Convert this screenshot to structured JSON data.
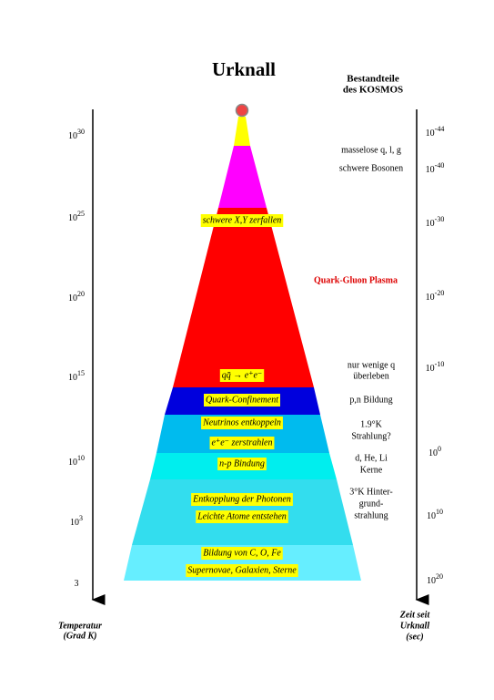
{
  "title": "Urknall",
  "components_heading": [
    "Bestandteile",
    "des KOSMOS"
  ],
  "temperature_axis": {
    "label": [
      "Temperatur",
      "(Grad K)"
    ],
    "ticks": [
      {
        "base": "10",
        "exp": "30"
      },
      {
        "base": "10",
        "exp": "25"
      },
      {
        "base": "10",
        "exp": "20"
      },
      {
        "base": "10",
        "exp": "15"
      },
      {
        "base": "10",
        "exp": "10"
      },
      {
        "base": "10",
        "exp": "3"
      },
      {
        "base": "3"
      }
    ]
  },
  "time_axis": {
    "label": [
      "Zeit seit",
      "Urknall",
      "(sec)"
    ],
    "ticks": [
      {
        "base": "10",
        "exp": "-44"
      },
      {
        "base": "10",
        "exp": "-40"
      },
      {
        "base": "10",
        "exp": "-30"
      },
      {
        "base": "10",
        "exp": "-20"
      },
      {
        "base": "10",
        "exp": "-10"
      },
      {
        "base": "10",
        "exp": "0"
      },
      {
        "base": "10",
        "exp": "10"
      },
      {
        "base": "10",
        "exp": "20"
      }
    ]
  },
  "epoch_labels": [
    "schwere X,Y zerfallen",
    "qq̄ → e⁺e⁻",
    "Quark-Confinement",
    "Neutrinos entkoppeln",
    "e⁺e⁻ zerstrahlen",
    "n-p Bindung",
    "Entkopplung der Photonen",
    "Leichte Atome entstehen",
    "Bildung von C, O, Fe",
    "Supernovae, Galaxien, Sterne"
  ],
  "annotations": [
    [
      "masselose q, l, g"
    ],
    [
      "schwere Bosonen"
    ],
    [
      "Quark-Gluon Plasma"
    ],
    [
      "nur wenige q",
      "überleben"
    ],
    [
      "p,n Bildung"
    ],
    [
      "1.9°K",
      "Strahlung?"
    ],
    [
      "d, He, Li",
      "Kerne"
    ],
    [
      "3°K  Hinter-",
      "grund-",
      "strahlung"
    ]
  ]
}
